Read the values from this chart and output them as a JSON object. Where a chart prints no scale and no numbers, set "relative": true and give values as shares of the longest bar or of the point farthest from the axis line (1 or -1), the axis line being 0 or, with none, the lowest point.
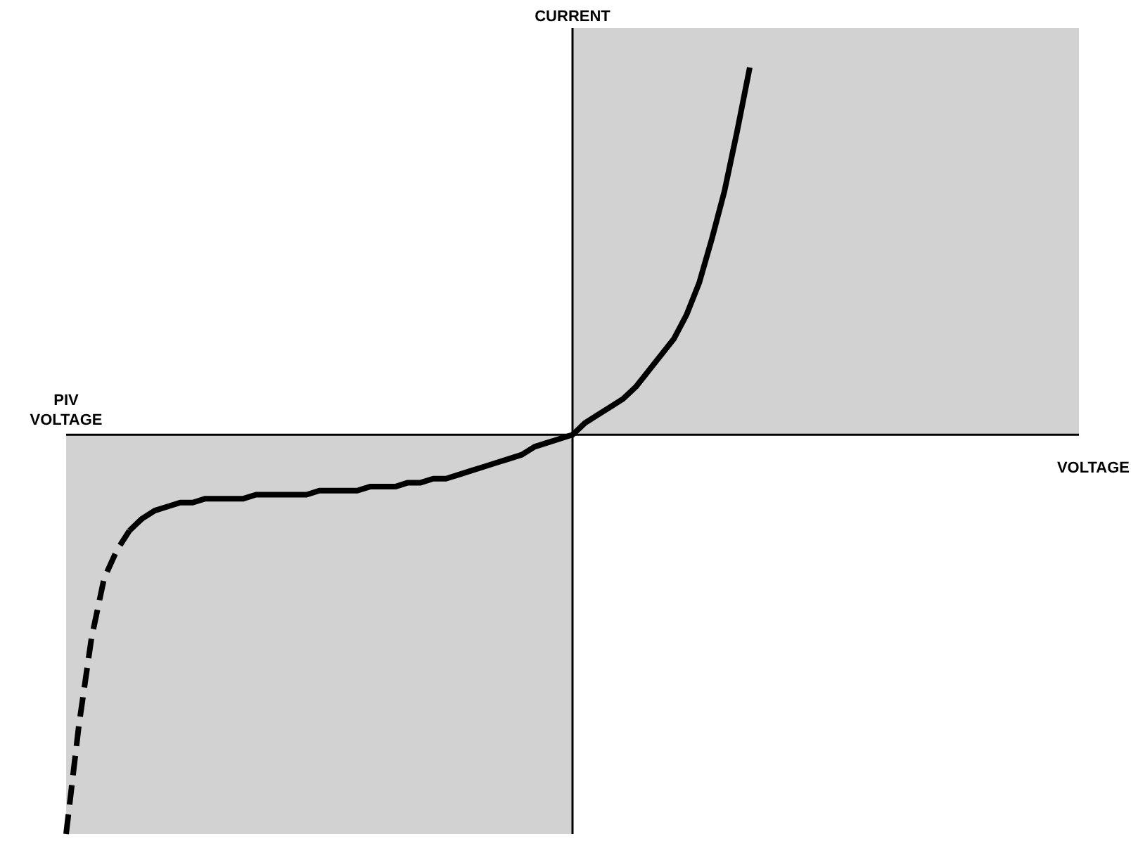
{
  "chart_data": {
    "type": "line",
    "relative": true,
    "xlabel": "VOLTAGE",
    "ylabel": "CURRENT",
    "annotations": [
      "PIV VOLTAGE"
    ],
    "categories": [
      null,
      null,
      null,
      null,
      null,
      null,
      null,
      null,
      null,
      null,
      null,
      null,
      null,
      null,
      null,
      null,
      null,
      null,
      null,
      null,
      null,
      null,
      null,
      null,
      null,
      null,
      null,
      null,
      null,
      null,
      null,
      null,
      null,
      null,
      null,
      null,
      null,
      null,
      null,
      null,
      null,
      null,
      null,
      null,
      null,
      null,
      null,
      null,
      null,
      null,
      null,
      null,
      null,
      null,
      null,
      null,
      null,
      null,
      null,
      null,
      null,
      null,
      null,
      null,
      null,
      null,
      null,
      null,
      null,
      null,
      null,
      null,
      null,
      null,
      null,
      null,
      null,
      null,
      null,
      null,
      null
    ],
    "series": [
      {
        "color": "#000000",
        "line_style": "dashed",
        "values": [
          -1.0,
          -0.73,
          -0.51,
          -0.36,
          -0.29,
          -0.24,
          null,
          null,
          null,
          null,
          null,
          null,
          null,
          null,
          null,
          null,
          null,
          null,
          null,
          null,
          null,
          null,
          null,
          null,
          null,
          null,
          null,
          null,
          null,
          null,
          null,
          null,
          null,
          null,
          null,
          null,
          null,
          null,
          null,
          null,
          null,
          null,
          null,
          null,
          null,
          null,
          null,
          null,
          null,
          null,
          null,
          null,
          null,
          null,
          null,
          null,
          null,
          null,
          null,
          null,
          null,
          null,
          null,
          null,
          null,
          null,
          null,
          null,
          null,
          null,
          null,
          null,
          null,
          null,
          null,
          null,
          null,
          null,
          null,
          null,
          null
        ]
      },
      {
        "color": "#000000",
        "line_style": "solid",
        "values": [
          null,
          null,
          null,
          null,
          null,
          -0.24,
          -0.21,
          -0.19,
          -0.18,
          -0.17,
          -0.17,
          -0.16,
          -0.16,
          -0.16,
          -0.16,
          -0.15,
          -0.15,
          -0.15,
          -0.15,
          -0.15,
          -0.14,
          -0.14,
          -0.14,
          -0.14,
          -0.13,
          -0.13,
          -0.13,
          -0.12,
          -0.12,
          -0.11,
          -0.11,
          -0.1,
          -0.09,
          -0.08,
          -0.07,
          -0.06,
          -0.05,
          -0.03,
          -0.02,
          -0.01,
          0,
          0.03,
          0.05,
          0.07,
          0.09,
          0.12,
          0.16,
          0.2,
          0.24,
          0.3,
          0.38,
          0.49,
          0.61,
          0.76,
          0.92,
          null,
          null,
          null,
          null,
          null,
          null,
          null,
          null,
          null,
          null,
          null,
          null,
          null,
          null,
          null,
          null,
          null,
          null,
          null,
          null,
          null,
          null,
          null,
          null,
          null,
          null
        ]
      }
    ]
  }
}
